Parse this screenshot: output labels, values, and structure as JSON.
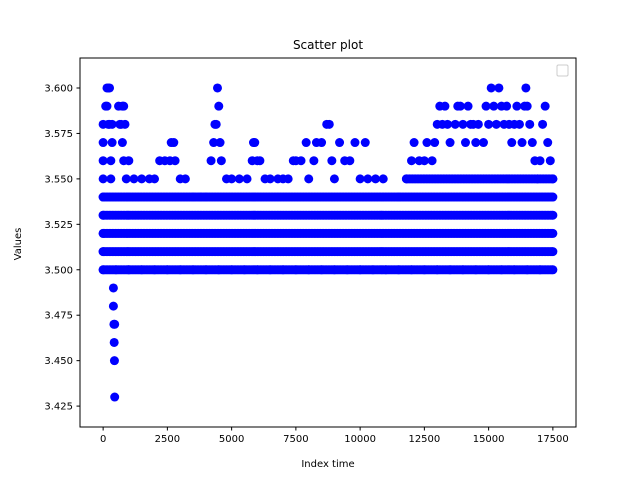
{
  "chart_data": {
    "type": "scatter",
    "title": "Scatter plot",
    "xlabel": "Index time",
    "ylabel": "Values",
    "xlim": [
      -900,
      18400
    ],
    "ylim": [
      3.4135,
      3.6165
    ],
    "xticks": [
      0,
      2500,
      5000,
      7500,
      10000,
      12500,
      15000,
      17500
    ],
    "xtick_labels": [
      "0",
      "2500",
      "5000",
      "7500",
      "10000",
      "12500",
      "15000",
      "17500"
    ],
    "yticks": [
      3.425,
      3.45,
      3.475,
      3.5,
      3.525,
      3.55,
      3.575,
      3.6
    ],
    "ytick_labels": [
      "3.425",
      "3.450",
      "3.475",
      "3.500",
      "3.525",
      "3.550",
      "3.575",
      "3.600"
    ],
    "grid": false,
    "legend": {
      "placement": "top-right",
      "entries": []
    },
    "marker_color": "#0000ff",
    "series": [
      {
        "points": [
          [
            0,
            3.5
          ],
          [
            0,
            3.51
          ],
          [
            0,
            3.52
          ],
          [
            0,
            3.53
          ],
          [
            0,
            3.54
          ],
          [
            0,
            3.55
          ],
          [
            0,
            3.56
          ],
          [
            0,
            3.57
          ],
          [
            0,
            3.58
          ],
          [
            150,
            3.6
          ],
          [
            200,
            3.6
          ],
          [
            250,
            3.6
          ],
          [
            150,
            3.59
          ],
          [
            200,
            3.58
          ],
          [
            250,
            3.58
          ],
          [
            100,
            3.59
          ],
          [
            300,
            3.56
          ],
          [
            300,
            3.55
          ],
          [
            350,
            3.57
          ],
          [
            350,
            3.58
          ],
          [
            400,
            3.49
          ],
          [
            400,
            3.48
          ],
          [
            420,
            3.47
          ],
          [
            450,
            3.47
          ],
          [
            430,
            3.46
          ],
          [
            440,
            3.45
          ],
          [
            450,
            3.43
          ],
          [
            600,
            3.59
          ],
          [
            650,
            3.58
          ],
          [
            700,
            3.58
          ],
          [
            750,
            3.59
          ],
          [
            800,
            3.59
          ],
          [
            850,
            3.58
          ],
          [
            750,
            3.57
          ],
          [
            800,
            3.56
          ],
          [
            900,
            3.55
          ],
          [
            1000,
            3.56
          ],
          [
            1200,
            3.55
          ],
          [
            1500,
            3.55
          ],
          [
            1800,
            3.55
          ],
          [
            2000,
            3.55
          ],
          [
            2200,
            3.56
          ],
          [
            2400,
            3.56
          ],
          [
            2600,
            3.56
          ],
          [
            2650,
            3.57
          ],
          [
            2750,
            3.57
          ],
          [
            2800,
            3.56
          ],
          [
            3000,
            3.55
          ],
          [
            3200,
            3.55
          ],
          [
            3500,
            3.54
          ],
          [
            3800,
            3.54
          ],
          [
            4000,
            3.54
          ],
          [
            4200,
            3.56
          ],
          [
            4300,
            3.57
          ],
          [
            4350,
            3.58
          ],
          [
            4400,
            3.58
          ],
          [
            4450,
            3.6
          ],
          [
            4500,
            3.59
          ],
          [
            4550,
            3.57
          ],
          [
            4600,
            3.56
          ],
          [
            4800,
            3.55
          ],
          [
            5000,
            3.55
          ],
          [
            5300,
            3.55
          ],
          [
            5600,
            3.55
          ],
          [
            5800,
            3.56
          ],
          [
            5850,
            3.57
          ],
          [
            5900,
            3.57
          ],
          [
            6000,
            3.56
          ],
          [
            6100,
            3.56
          ],
          [
            6300,
            3.55
          ],
          [
            6500,
            3.55
          ],
          [
            6800,
            3.55
          ],
          [
            7000,
            3.55
          ],
          [
            7200,
            3.55
          ],
          [
            7400,
            3.56
          ],
          [
            7500,
            3.56
          ],
          [
            7700,
            3.56
          ],
          [
            7900,
            3.57
          ],
          [
            8000,
            3.55
          ],
          [
            8200,
            3.56
          ],
          [
            8300,
            3.57
          ],
          [
            8500,
            3.57
          ],
          [
            8700,
            3.58
          ],
          [
            8800,
            3.58
          ],
          [
            8900,
            3.56
          ],
          [
            9000,
            3.55
          ],
          [
            9200,
            3.57
          ],
          [
            9400,
            3.56
          ],
          [
            9600,
            3.56
          ],
          [
            9800,
            3.57
          ],
          [
            10000,
            3.55
          ],
          [
            10200,
            3.57
          ],
          [
            10300,
            3.55
          ],
          [
            10600,
            3.55
          ],
          [
            10900,
            3.55
          ],
          [
            11500,
            3.54
          ],
          [
            11800,
            3.55
          ],
          [
            12000,
            3.56
          ],
          [
            12100,
            3.57
          ],
          [
            12300,
            3.56
          ],
          [
            12500,
            3.56
          ],
          [
            12600,
            3.57
          ],
          [
            12800,
            3.56
          ],
          [
            12900,
            3.57
          ],
          [
            13000,
            3.58
          ],
          [
            13100,
            3.59
          ],
          [
            13200,
            3.58
          ],
          [
            13300,
            3.59
          ],
          [
            13400,
            3.58
          ],
          [
            13500,
            3.57
          ],
          [
            13700,
            3.58
          ],
          [
            13800,
            3.59
          ],
          [
            13900,
            3.59
          ],
          [
            14000,
            3.58
          ],
          [
            14100,
            3.57
          ],
          [
            14200,
            3.59
          ],
          [
            14300,
            3.58
          ],
          [
            14400,
            3.58
          ],
          [
            14500,
            3.57
          ],
          [
            14600,
            3.58
          ],
          [
            14800,
            3.57
          ],
          [
            14900,
            3.59
          ],
          [
            15000,
            3.58
          ],
          [
            15100,
            3.6
          ],
          [
            15200,
            3.59
          ],
          [
            15300,
            3.58
          ],
          [
            15400,
            3.6
          ],
          [
            15500,
            3.59
          ],
          [
            15600,
            3.58
          ],
          [
            15700,
            3.59
          ],
          [
            15800,
            3.58
          ],
          [
            15900,
            3.57
          ],
          [
            16000,
            3.58
          ],
          [
            16100,
            3.59
          ],
          [
            16200,
            3.58
          ],
          [
            16300,
            3.57
          ],
          [
            16400,
            3.59
          ],
          [
            16450,
            3.6
          ],
          [
            16500,
            3.59
          ],
          [
            16600,
            3.58
          ],
          [
            16700,
            3.57
          ],
          [
            16800,
            3.56
          ],
          [
            16900,
            3.55
          ],
          [
            17000,
            3.56
          ],
          [
            17100,
            3.58
          ],
          [
            17200,
            3.59
          ],
          [
            17300,
            3.57
          ],
          [
            17400,
            3.56
          ],
          [
            17500,
            3.55
          ],
          [
            500,
            3.5
          ],
          [
            1000,
            3.5
          ],
          [
            1500,
            3.5
          ],
          [
            2000,
            3.5
          ],
          [
            2500,
            3.5
          ],
          [
            3000,
            3.5
          ],
          [
            3500,
            3.5
          ],
          [
            4000,
            3.5
          ],
          [
            4500,
            3.5
          ],
          [
            5000,
            3.5
          ],
          [
            5500,
            3.5
          ],
          [
            6000,
            3.5
          ],
          [
            6500,
            3.5
          ],
          [
            7000,
            3.5
          ],
          [
            7500,
            3.5
          ],
          [
            8000,
            3.5
          ],
          [
            8500,
            3.5
          ],
          [
            9000,
            3.5
          ],
          [
            9500,
            3.5
          ],
          [
            10000,
            3.5
          ],
          [
            10500,
            3.5
          ],
          [
            11000,
            3.5
          ],
          [
            11500,
            3.5
          ],
          [
            12000,
            3.5
          ],
          [
            12500,
            3.5
          ],
          [
            13000,
            3.5
          ],
          [
            13500,
            3.5
          ],
          [
            14000,
            3.5
          ],
          [
            14500,
            3.5
          ],
          [
            15000,
            3.5
          ],
          [
            15500,
            3.5
          ],
          [
            16000,
            3.5
          ],
          [
            16500,
            3.5
          ],
          [
            17000,
            3.5
          ],
          [
            17500,
            3.5
          ],
          [
            17500,
            3.51
          ],
          [
            17500,
            3.52
          ],
          [
            17500,
            3.53
          ],
          [
            17500,
            3.54
          ]
        ]
      }
    ],
    "dense_bands": [
      {
        "y": 3.5,
        "x_range": [
          0,
          17500
        ]
      },
      {
        "y": 3.51,
        "x_range": [
          0,
          17500
        ]
      },
      {
        "y": 3.52,
        "x_range": [
          0,
          17500
        ]
      },
      {
        "y": 3.53,
        "x_range": [
          0,
          17500
        ]
      },
      {
        "y": 3.54,
        "x_range": [
          0,
          17500
        ]
      },
      {
        "y": 3.55,
        "x_range": [
          11800,
          17500
        ]
      }
    ]
  }
}
